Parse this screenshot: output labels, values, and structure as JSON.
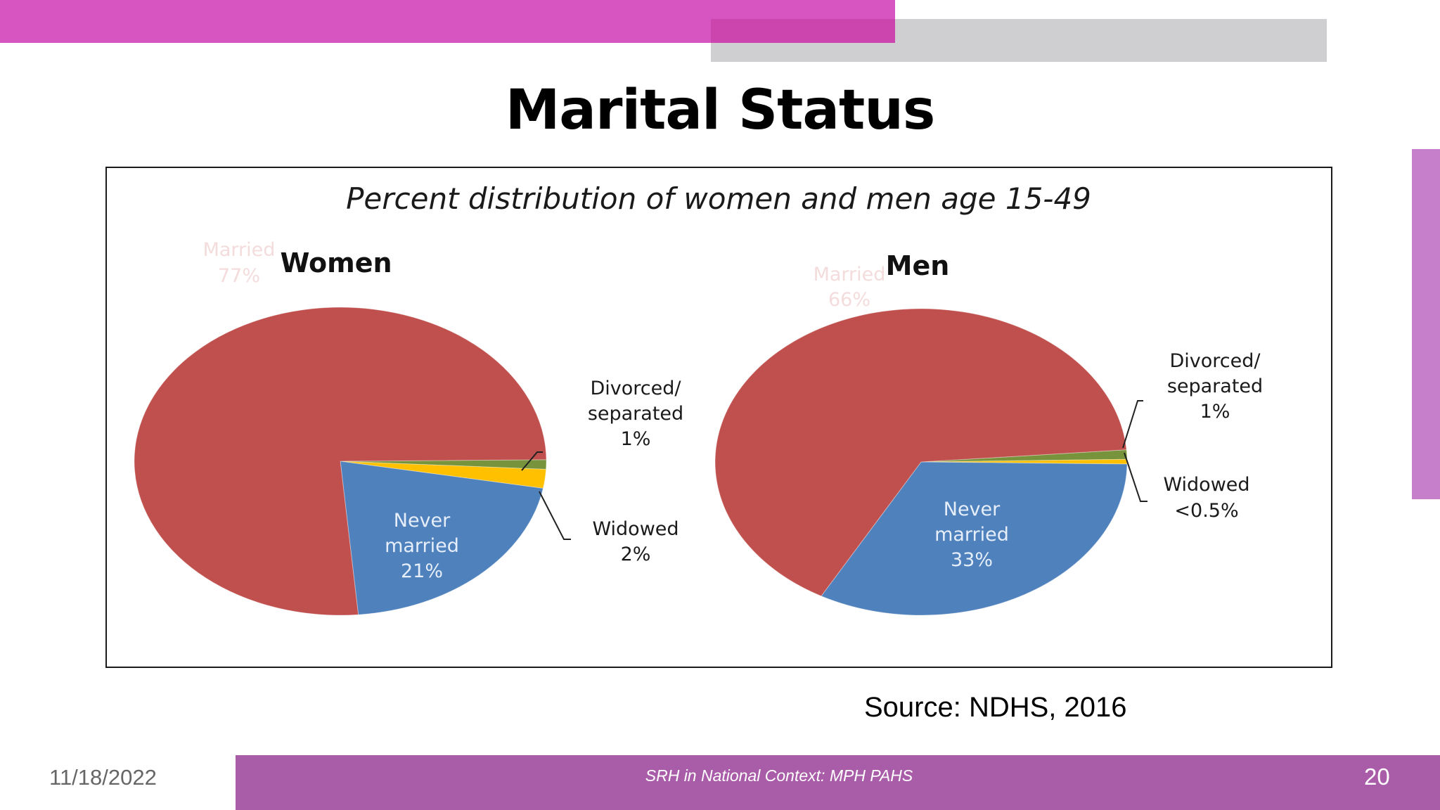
{
  "slide": {
    "title": "Marital Status",
    "source": "Source:  NDHS, 2016",
    "footer": {
      "date": "11/18/2022",
      "center": "SRH in National Context: MPH PAHS",
      "page": "20"
    },
    "colors": {
      "accent_pink": "#d655c0",
      "accent_grey": "#cfcfd1",
      "footer_purple": "#a95ca8",
      "side_tab": "#c67fcb"
    }
  },
  "chart_data": [
    {
      "type": "pie",
      "title": "Percent distribution of women and men age 15-49",
      "subtitle": "Women",
      "slices": [
        {
          "label": "Married",
          "value": 77,
          "display": "77%",
          "color": "#c0504d"
        },
        {
          "label": "Divorced/ separated",
          "value": 1,
          "display": "1%",
          "color": "#77933c"
        },
        {
          "label": "Widowed",
          "value": 2,
          "display": "2%",
          "color": "#ffc000"
        },
        {
          "label": "Never married",
          "value": 21,
          "display": "21%",
          "color": "#4f81bd"
        }
      ]
    },
    {
      "type": "pie",
      "subtitle": "Men",
      "slices": [
        {
          "label": "Married",
          "value": 66,
          "display": "66%",
          "color": "#c0504d"
        },
        {
          "label": "Divorced/ separated",
          "value": 1,
          "display": "1%",
          "color": "#77933c"
        },
        {
          "label": "Widowed",
          "value": 0.5,
          "display": "<0.5%",
          "color": "#ffc000"
        },
        {
          "label": "Never married",
          "value": 33,
          "display": "33%",
          "color": "#4f81bd"
        }
      ]
    }
  ]
}
